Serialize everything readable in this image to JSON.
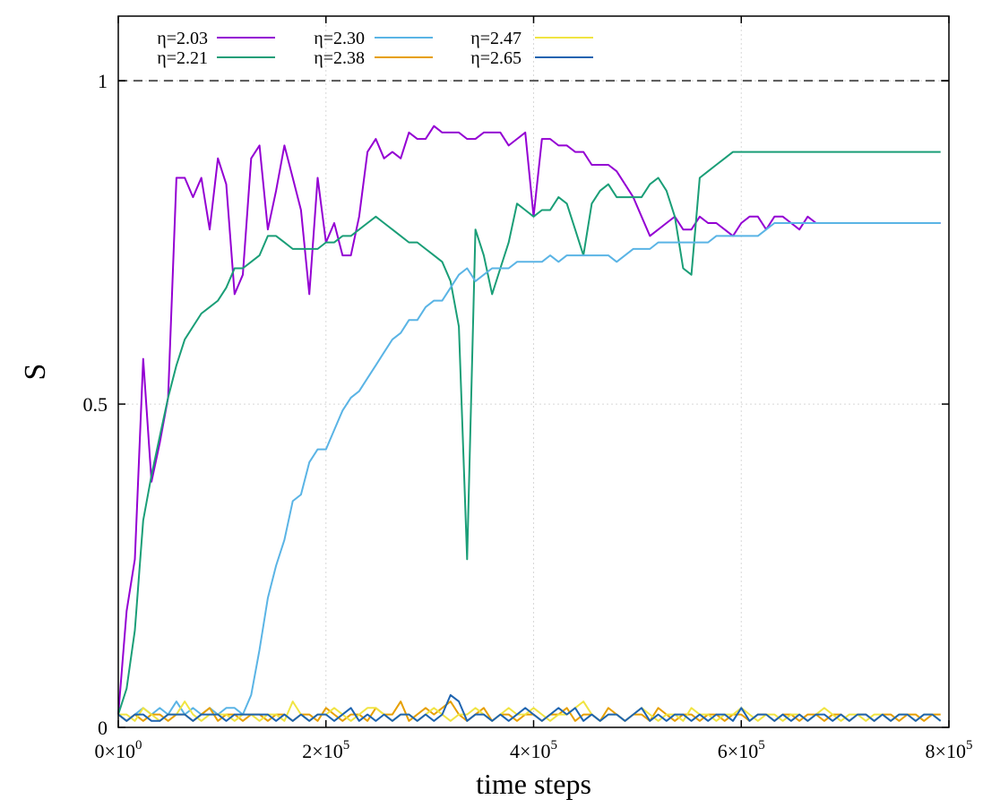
{
  "chart_data": {
    "type": "line",
    "xlabel": "time steps",
    "ylabel": "S",
    "xlim": [
      0,
      800000
    ],
    "ylim": [
      0,
      1.1
    ],
    "x_ticks": [
      {
        "value": 0,
        "mant": "0",
        "exp": "0"
      },
      {
        "value": 200000,
        "mant": "2",
        "exp": "5"
      },
      {
        "value": 400000,
        "mant": "4",
        "exp": "5"
      },
      {
        "value": 600000,
        "mant": "6",
        "exp": "5"
      },
      {
        "value": 800000,
        "mant": "8",
        "exp": "5"
      }
    ],
    "y_ticks": [
      {
        "value": 0,
        "label": "0"
      },
      {
        "value": 0.5,
        "label": "0.5"
      },
      {
        "value": 1,
        "label": "1"
      }
    ],
    "grid": true,
    "reference_line": {
      "y": 1,
      "style": "dashed",
      "color": "#555555"
    },
    "legend_position": "top-left",
    "x": [
      0,
      8000,
      16000,
      24000,
      32000,
      40000,
      48000,
      56000,
      64000,
      72000,
      80000,
      88000,
      96000,
      104000,
      112000,
      120000,
      128000,
      136000,
      144000,
      152000,
      160000,
      168000,
      176000,
      184000,
      192000,
      200000,
      208000,
      216000,
      224000,
      232000,
      240000,
      248000,
      256000,
      264000,
      272000,
      280000,
      288000,
      296000,
      304000,
      312000,
      320000,
      328000,
      336000,
      344000,
      352000,
      360000,
      368000,
      376000,
      384000,
      392000,
      400000,
      408000,
      416000,
      424000,
      432000,
      440000,
      448000,
      456000,
      464000,
      472000,
      480000,
      488000,
      496000,
      504000,
      512000,
      520000,
      528000,
      536000,
      544000,
      552000,
      560000,
      568000,
      576000,
      584000,
      592000,
      600000,
      608000,
      616000,
      624000,
      632000,
      640000,
      648000,
      656000,
      664000,
      672000,
      680000,
      688000,
      696000,
      704000,
      712000,
      720000,
      728000,
      736000,
      744000,
      752000,
      760000,
      768000,
      776000,
      784000,
      792000
    ],
    "series": [
      {
        "name": "η=2.03",
        "color": "#9400d3",
        "values": [
          0.02,
          0.18,
          0.26,
          0.57,
          0.38,
          0.44,
          0.51,
          0.85,
          0.85,
          0.82,
          0.85,
          0.77,
          0.88,
          0.84,
          0.67,
          0.7,
          0.88,
          0.9,
          0.77,
          0.83,
          0.9,
          0.85,
          0.8,
          0.67,
          0.85,
          0.75,
          0.78,
          0.73,
          0.73,
          0.79,
          0.89,
          0.91,
          0.88,
          0.89,
          0.88,
          0.92,
          0.91,
          0.91,
          0.93,
          0.92,
          0.92,
          0.92,
          0.91,
          0.91,
          0.92,
          0.92,
          0.92,
          0.9,
          0.91,
          0.92,
          0.79,
          0.91,
          0.91,
          0.9,
          0.9,
          0.89,
          0.89,
          0.87,
          0.87,
          0.87,
          0.86,
          0.84,
          0.82,
          0.79,
          0.76,
          0.77,
          0.78,
          0.79,
          0.77,
          0.77,
          0.79,
          0.78,
          0.78,
          0.77,
          0.76,
          0.78,
          0.79,
          0.79,
          0.77,
          0.79,
          0.79,
          0.78,
          0.77,
          0.79,
          0.78,
          0.78,
          0.78,
          0.78,
          0.78,
          0.78,
          0.78,
          0.78,
          0.78,
          0.78,
          0.78,
          0.78,
          0.78,
          0.78,
          0.78,
          0.78
        ]
      },
      {
        "name": "η=2.21",
        "color": "#1a9e77",
        "values": [
          0.02,
          0.06,
          0.15,
          0.32,
          0.39,
          0.45,
          0.51,
          0.56,
          0.6,
          0.62,
          0.64,
          0.65,
          0.66,
          0.68,
          0.71,
          0.71,
          0.72,
          0.73,
          0.76,
          0.76,
          0.75,
          0.74,
          0.74,
          0.74,
          0.74,
          0.75,
          0.75,
          0.76,
          0.76,
          0.77,
          0.78,
          0.79,
          0.78,
          0.77,
          0.76,
          0.75,
          0.75,
          0.74,
          0.73,
          0.72,
          0.69,
          0.62,
          0.26,
          0.77,
          0.73,
          0.67,
          0.71,
          0.75,
          0.81,
          0.8,
          0.79,
          0.8,
          0.8,
          0.82,
          0.81,
          0.77,
          0.73,
          0.81,
          0.83,
          0.84,
          0.82,
          0.82,
          0.82,
          0.82,
          0.84,
          0.85,
          0.83,
          0.79,
          0.71,
          0.7,
          0.85,
          0.86,
          0.87,
          0.88,
          0.89,
          0.89,
          0.89,
          0.89,
          0.89,
          0.89,
          0.89,
          0.89,
          0.89,
          0.89,
          0.89,
          0.89,
          0.89,
          0.89,
          0.89,
          0.89,
          0.89,
          0.89,
          0.89,
          0.89,
          0.89,
          0.89,
          0.89,
          0.89,
          0.89,
          0.89
        ]
      },
      {
        "name": "η=2.30",
        "color": "#5ab4e5",
        "values": [
          0.02,
          0.01,
          0.02,
          0.03,
          0.02,
          0.03,
          0.02,
          0.04,
          0.02,
          0.03,
          0.02,
          0.03,
          0.02,
          0.03,
          0.03,
          0.02,
          0.05,
          0.12,
          0.2,
          0.25,
          0.29,
          0.35,
          0.36,
          0.41,
          0.43,
          0.43,
          0.46,
          0.49,
          0.51,
          0.52,
          0.54,
          0.56,
          0.58,
          0.6,
          0.61,
          0.63,
          0.63,
          0.65,
          0.66,
          0.66,
          0.68,
          0.7,
          0.71,
          0.69,
          0.7,
          0.71,
          0.71,
          0.71,
          0.72,
          0.72,
          0.72,
          0.72,
          0.73,
          0.72,
          0.73,
          0.73,
          0.73,
          0.73,
          0.73,
          0.73,
          0.72,
          0.73,
          0.74,
          0.74,
          0.74,
          0.75,
          0.75,
          0.75,
          0.75,
          0.75,
          0.75,
          0.75,
          0.76,
          0.76,
          0.76,
          0.76,
          0.76,
          0.76,
          0.77,
          0.78,
          0.78,
          0.78,
          0.78,
          0.78,
          0.78,
          0.78,
          0.78,
          0.78,
          0.78,
          0.78,
          0.78,
          0.78,
          0.78,
          0.78,
          0.78,
          0.78,
          0.78,
          0.78,
          0.78,
          0.78
        ]
      },
      {
        "name": "η=2.38",
        "color": "#e69f00",
        "values": [
          0.02,
          0.01,
          0.02,
          0.01,
          0.02,
          0.02,
          0.01,
          0.02,
          0.02,
          0.01,
          0.02,
          0.03,
          0.01,
          0.02,
          0.02,
          0.01,
          0.02,
          0.02,
          0.01,
          0.02,
          0.02,
          0.01,
          0.02,
          0.02,
          0.01,
          0.03,
          0.02,
          0.01,
          0.02,
          0.02,
          0.01,
          0.03,
          0.02,
          0.02,
          0.04,
          0.01,
          0.02,
          0.03,
          0.02,
          0.03,
          0.04,
          0.02,
          0.01,
          0.02,
          0.03,
          0.01,
          0.02,
          0.02,
          0.01,
          0.02,
          0.02,
          0.01,
          0.02,
          0.02,
          0.03,
          0.01,
          0.02,
          0.02,
          0.01,
          0.03,
          0.02,
          0.01,
          0.02,
          0.02,
          0.01,
          0.03,
          0.02,
          0.01,
          0.02,
          0.02,
          0.01,
          0.02,
          0.02,
          0.01,
          0.02,
          0.02,
          0.01,
          0.02,
          0.02,
          0.01,
          0.02,
          0.02,
          0.01,
          0.02,
          0.02,
          0.01,
          0.02,
          0.02,
          0.01,
          0.02,
          0.02,
          0.01,
          0.02,
          0.02,
          0.01,
          0.02,
          0.02,
          0.01,
          0.02,
          0.02
        ]
      },
      {
        "name": "η=2.47",
        "color": "#f0e442",
        "values": [
          0.02,
          0.02,
          0.01,
          0.03,
          0.02,
          0.01,
          0.02,
          0.02,
          0.04,
          0.02,
          0.01,
          0.02,
          0.02,
          0.02,
          0.01,
          0.02,
          0.02,
          0.01,
          0.02,
          0.02,
          0.01,
          0.04,
          0.02,
          0.01,
          0.02,
          0.02,
          0.03,
          0.02,
          0.01,
          0.02,
          0.03,
          0.03,
          0.02,
          0.01,
          0.02,
          0.02,
          0.01,
          0.02,
          0.03,
          0.02,
          0.01,
          0.02,
          0.02,
          0.03,
          0.02,
          0.01,
          0.02,
          0.03,
          0.02,
          0.02,
          0.03,
          0.02,
          0.01,
          0.02,
          0.02,
          0.03,
          0.04,
          0.02,
          0.01,
          0.02,
          0.02,
          0.01,
          0.02,
          0.03,
          0.02,
          0.01,
          0.02,
          0.02,
          0.01,
          0.03,
          0.02,
          0.02,
          0.01,
          0.02,
          0.02,
          0.03,
          0.02,
          0.01,
          0.02,
          0.02,
          0.01,
          0.02,
          0.02,
          0.01,
          0.02,
          0.03,
          0.02,
          0.01,
          0.02,
          0.02,
          0.01,
          0.02,
          0.02,
          0.01,
          0.02,
          0.02,
          0.01,
          0.02,
          0.02,
          0.01
        ]
      },
      {
        "name": "η=2.65",
        "color": "#1e64b0",
        "values": [
          0.02,
          0.01,
          0.02,
          0.02,
          0.01,
          0.01,
          0.02,
          0.02,
          0.02,
          0.01,
          0.02,
          0.02,
          0.02,
          0.01,
          0.02,
          0.02,
          0.02,
          0.02,
          0.02,
          0.01,
          0.02,
          0.01,
          0.02,
          0.01,
          0.02,
          0.02,
          0.01,
          0.02,
          0.03,
          0.01,
          0.02,
          0.01,
          0.02,
          0.01,
          0.02,
          0.02,
          0.01,
          0.02,
          0.01,
          0.02,
          0.05,
          0.04,
          0.01,
          0.02,
          0.02,
          0.01,
          0.02,
          0.01,
          0.02,
          0.03,
          0.02,
          0.01,
          0.02,
          0.03,
          0.02,
          0.03,
          0.01,
          0.02,
          0.01,
          0.02,
          0.02,
          0.01,
          0.02,
          0.03,
          0.01,
          0.02,
          0.01,
          0.02,
          0.02,
          0.01,
          0.02,
          0.01,
          0.02,
          0.02,
          0.01,
          0.03,
          0.01,
          0.02,
          0.02,
          0.01,
          0.02,
          0.01,
          0.02,
          0.01,
          0.02,
          0.02,
          0.01,
          0.02,
          0.01,
          0.02,
          0.02,
          0.01,
          0.02,
          0.01,
          0.02,
          0.02,
          0.01,
          0.02,
          0.02,
          0.01
        ]
      }
    ]
  }
}
